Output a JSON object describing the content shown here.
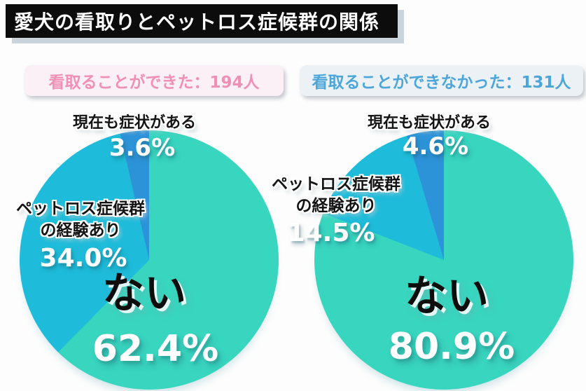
{
  "page": {
    "background": "#fdfdfd"
  },
  "title": {
    "text": "愛犬の看取りとペットロス症候群の関係",
    "bg": "#0c0c0c",
    "color": "#ffffff",
    "shadow_color": "#c9d4dd"
  },
  "headers": [
    {
      "text": "看取ることができた：194人",
      "color": "#f090b6",
      "bg": "#fbf0f5"
    },
    {
      "text": "看取ることができなかった：131人",
      "color": "#4da6da",
      "bg": "#ebf1f5"
    }
  ],
  "display": {
    "petloss_line1": "ペットロス症候群",
    "petloss_line2": "の経験あり"
  },
  "chart_data": [
    {
      "type": "pie",
      "title": "看取ることができた：194人",
      "sample_n": 194,
      "labels": [
        "ない",
        "ペットロス症候群の経験あり",
        "現在も症状がある"
      ],
      "values": [
        62.4,
        34.0,
        3.6
      ],
      "value_labels": [
        "62.4%",
        "34.0%",
        "3.6%"
      ],
      "unit": "%",
      "colors": [
        "#38d5bf",
        "#1ebcda",
        "#2d93d8"
      ],
      "start_angle_deg": 0,
      "direction": "clockwise",
      "legend": false
    },
    {
      "type": "pie",
      "title": "看取ることができなかった：131人",
      "sample_n": 131,
      "labels": [
        "ない",
        "ペットロス症候群の経験あり",
        "現在も症状がある"
      ],
      "values": [
        80.9,
        14.5,
        4.6
      ],
      "value_labels": [
        "80.9%",
        "14.5%",
        "4.6%"
      ],
      "unit": "%",
      "colors": [
        "#38d5bf",
        "#1ebcda",
        "#2d93d8"
      ],
      "start_angle_deg": 0,
      "direction": "clockwise",
      "legend": false
    }
  ]
}
